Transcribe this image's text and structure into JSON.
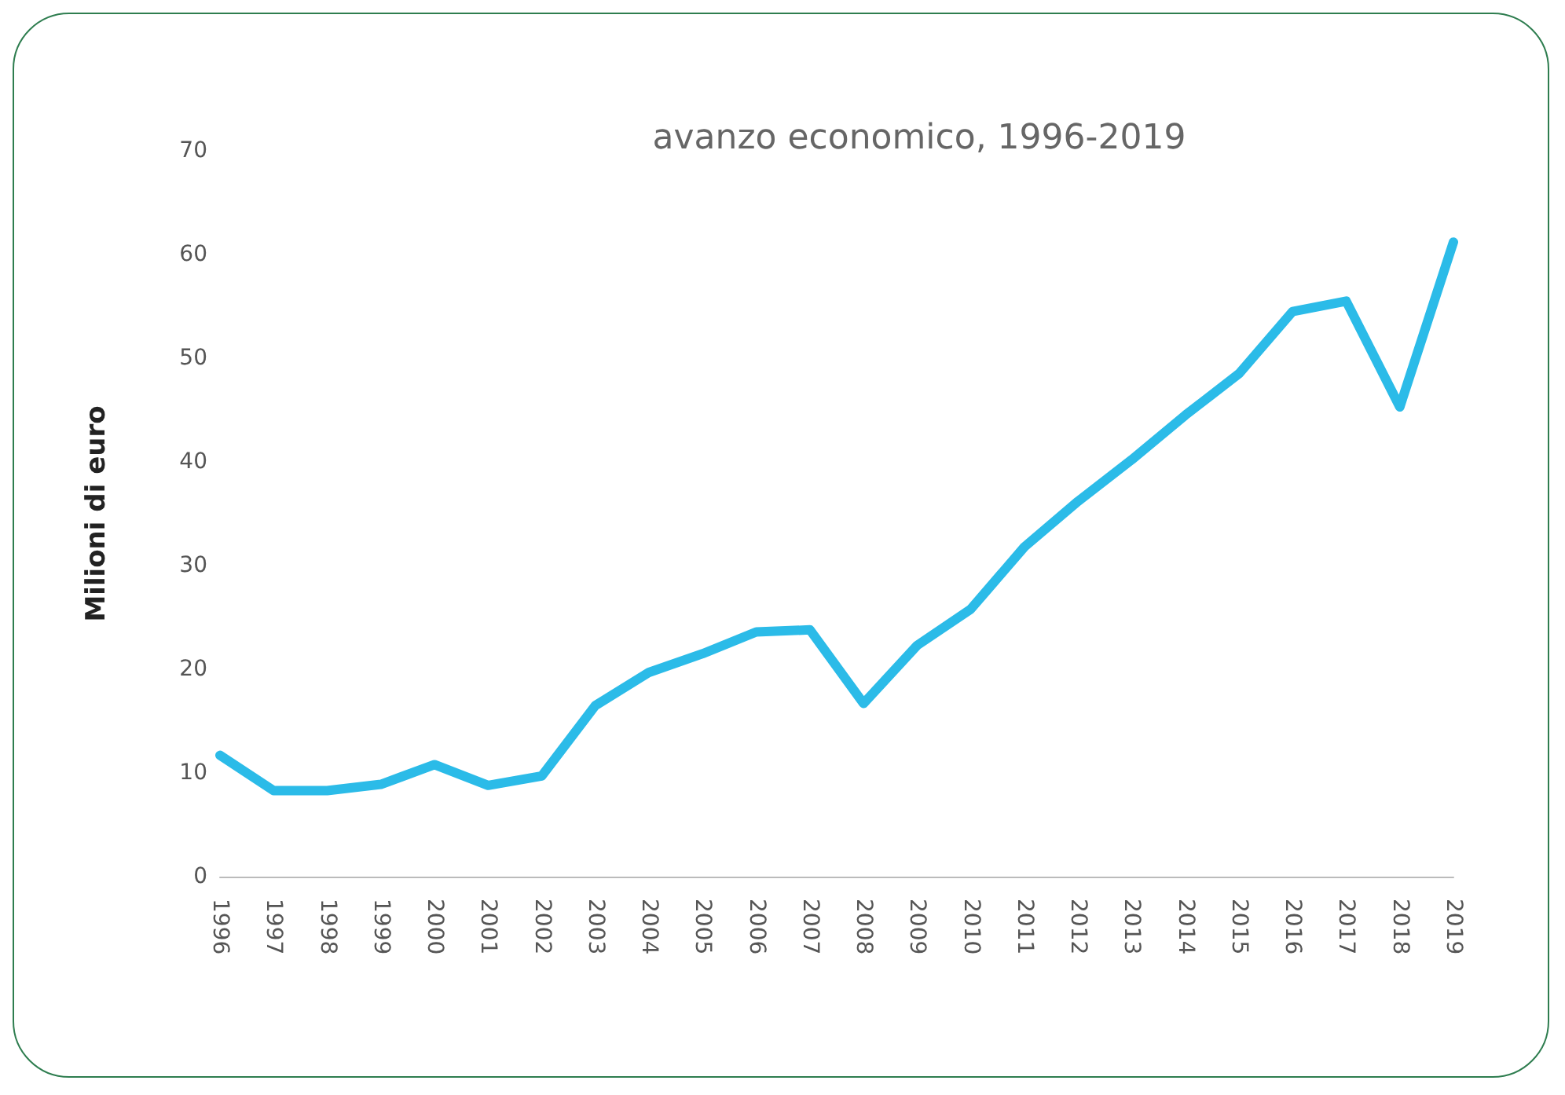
{
  "chart_data": {
    "type": "line",
    "title": "avanzo economico, 1996-2019",
    "ylabel": "Milioni di euro",
    "categories": [
      "1996",
      "1997",
      "1998",
      "1999",
      "2000",
      "2001",
      "2002",
      "2003",
      "2004",
      "2005",
      "2006",
      "2007",
      "2008",
      "2009",
      "2010",
      "2011",
      "2012",
      "2013",
      "2014",
      "2015",
      "2016",
      "2017",
      "2018",
      "2019"
    ],
    "series": [
      {
        "color": "#2bbbe8",
        "values": [
          11.7,
          8.3,
          8.3,
          8.9,
          10.8,
          8.8,
          9.7,
          16.5,
          19.7,
          21.5,
          23.6,
          23.8,
          16.7,
          22.3,
          25.8,
          31.8,
          36.2,
          40.2,
          44.5,
          48.5,
          54.5,
          55.5,
          45.3,
          61.2
        ]
      }
    ],
    "ylim": [
      0,
      70
    ],
    "yticks": [
      0,
      10,
      20,
      30,
      40,
      50,
      60,
      70
    ],
    "grid": false,
    "marker": "none",
    "line_style": "solid"
  }
}
